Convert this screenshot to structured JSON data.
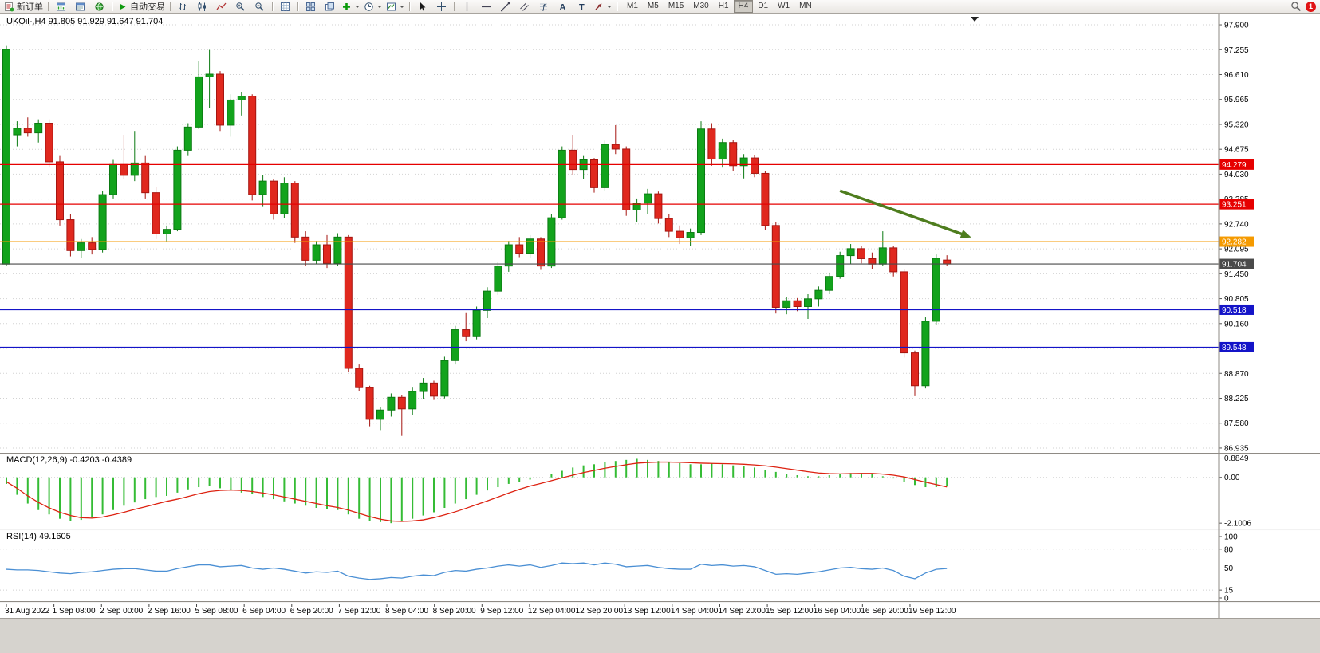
{
  "toolbar": {
    "new_order_label": "新订单",
    "autotrading_label": "自动交易",
    "timeframe_labels": [
      "M1",
      "M5",
      "M15",
      "M30",
      "H1",
      "H4",
      "D1",
      "W1",
      "MN"
    ],
    "active_timeframe": "H4",
    "notification_count": "1"
  },
  "chart_data": {
    "type": "candlestick",
    "symbol_label": "UKOil-,H4 91.805 91.929 91.647 91.704",
    "timeframe": "H4",
    "candle_up_color": "#12a31c",
    "candle_up_border": "#0b7a12",
    "candle_down_color": "#e0281e",
    "candle_down_border": "#a51510",
    "price_axis_ticks": [
      "97.900",
      "97.255",
      "96.610",
      "95.965",
      "95.320",
      "94.675",
      "94.030",
      "93.385",
      "92.740",
      "92.095",
      "91.450",
      "90.805",
      "90.160",
      "89.515",
      "88.870",
      "88.225",
      "87.580",
      "86.935"
    ],
    "time_axis_ticks": [
      "31 Aug 2022",
      "1 Sep 08:00",
      "2 Sep 00:00",
      "2 Sep 16:00",
      "5 Sep 08:00",
      "6 Sep 04:00",
      "6 Sep 20:00",
      "7 Sep 12:00",
      "8 Sep 04:00",
      "8 Sep 20:00",
      "9 Sep 12:00",
      "12 Sep 04:00",
      "12 Sep 20:00",
      "13 Sep 12:00",
      "14 Sep 04:00",
      "14 Sep 20:00",
      "15 Sep 12:00",
      "16 Sep 04:00",
      "16 Sep 20:00",
      "19 Sep 12:00"
    ],
    "levels": [
      {
        "price": 94.279,
        "label": "94.279",
        "color": "#e60000"
      },
      {
        "price": 93.251,
        "label": "93.251",
        "color": "#e60000"
      },
      {
        "price": 92.282,
        "label": "92.282",
        "color": "#f59a00"
      },
      {
        "price": 91.704,
        "label": "91.704",
        "color": "#4a4a4a"
      },
      {
        "price": 90.518,
        "label": "90.518",
        "color": "#1414c8"
      },
      {
        "price": 89.548,
        "label": "89.548",
        "color": "#1414c8"
      }
    ],
    "annotation_arrow": {
      "from_bar": 78,
      "from_price": 93.6,
      "to_bar": 90,
      "to_price": 92.42,
      "color": "#4e7d1e"
    },
    "scroll_marker_bar": 90.6,
    "candles": [
      [
        91.7,
        97.35,
        91.65,
        97.26
      ],
      [
        95.05,
        95.4,
        94.75,
        95.22
      ],
      [
        95.22,
        95.5,
        95.0,
        95.1
      ],
      [
        95.1,
        95.45,
        94.85,
        95.35
      ],
      [
        95.35,
        95.45,
        94.2,
        94.35
      ],
      [
        94.35,
        94.5,
        92.7,
        92.85
      ],
      [
        92.85,
        93.0,
        91.9,
        92.05
      ],
      [
        92.05,
        92.35,
        91.85,
        92.25
      ],
      [
        92.25,
        92.4,
        91.95,
        92.08
      ],
      [
        92.08,
        93.6,
        92.0,
        93.5
      ],
      [
        93.5,
        94.4,
        93.4,
        94.28
      ],
      [
        94.28,
        95.05,
        93.9,
        94.0
      ],
      [
        94.0,
        95.15,
        93.85,
        94.32
      ],
      [
        94.32,
        94.5,
        93.4,
        93.55
      ],
      [
        93.55,
        93.7,
        92.35,
        92.48
      ],
      [
        92.48,
        92.7,
        92.28,
        92.6
      ],
      [
        92.6,
        94.75,
        92.55,
        94.65
      ],
      [
        94.65,
        95.35,
        94.5,
        95.25
      ],
      [
        95.25,
        96.95,
        95.2,
        96.55
      ],
      [
        96.55,
        97.25,
        95.75,
        96.62
      ],
      [
        96.62,
        96.7,
        95.15,
        95.3
      ],
      [
        95.3,
        96.1,
        95.0,
        95.95
      ],
      [
        95.95,
        96.15,
        95.55,
        96.05
      ],
      [
        96.05,
        96.1,
        93.35,
        93.5
      ],
      [
        93.5,
        94.0,
        93.2,
        93.85
      ],
      [
        93.85,
        93.9,
        92.85,
        93.0
      ],
      [
        93.0,
        93.95,
        92.9,
        93.8
      ],
      [
        93.8,
        93.85,
        92.25,
        92.4
      ],
      [
        92.4,
        92.55,
        91.65,
        91.8
      ],
      [
        91.8,
        92.3,
        91.7,
        92.2
      ],
      [
        92.2,
        92.45,
        91.6,
        91.72
      ],
      [
        91.72,
        92.5,
        91.65,
        92.4
      ],
      [
        92.4,
        92.45,
        88.9,
        89.0
      ],
      [
        89.0,
        89.1,
        88.4,
        88.5
      ],
      [
        88.5,
        88.55,
        87.5,
        87.68
      ],
      [
        87.68,
        88.0,
        87.4,
        87.92
      ],
      [
        87.92,
        88.35,
        87.75,
        88.25
      ],
      [
        88.25,
        88.3,
        87.25,
        87.95
      ],
      [
        87.95,
        88.5,
        87.8,
        88.4
      ],
      [
        88.4,
        88.75,
        88.2,
        88.62
      ],
      [
        88.62,
        88.68,
        88.18,
        88.28
      ],
      [
        88.28,
        89.3,
        88.22,
        89.2
      ],
      [
        89.2,
        90.1,
        89.1,
        90.0
      ],
      [
        90.0,
        90.45,
        89.7,
        89.82
      ],
      [
        89.82,
        90.6,
        89.75,
        90.5
      ],
      [
        90.5,
        91.1,
        90.3,
        91.0
      ],
      [
        91.0,
        91.75,
        90.9,
        91.65
      ],
      [
        91.65,
        92.3,
        91.5,
        92.2
      ],
      [
        92.2,
        92.4,
        91.88,
        91.98
      ],
      [
        91.98,
        92.45,
        91.85,
        92.35
      ],
      [
        92.35,
        92.4,
        91.55,
        91.65
      ],
      [
        91.65,
        93.0,
        91.6,
        92.9
      ],
      [
        92.9,
        94.75,
        92.85,
        94.65
      ],
      [
        94.65,
        95.05,
        94.0,
        94.15
      ],
      [
        94.15,
        94.5,
        93.9,
        94.4
      ],
      [
        94.4,
        94.45,
        93.55,
        93.68
      ],
      [
        93.68,
        94.9,
        93.6,
        94.8
      ],
      [
        94.8,
        95.3,
        94.55,
        94.68
      ],
      [
        94.68,
        94.75,
        92.95,
        93.1
      ],
      [
        93.1,
        93.4,
        92.8,
        93.28
      ],
      [
        93.28,
        93.65,
        93.0,
        93.52
      ],
      [
        93.52,
        93.58,
        92.75,
        92.88
      ],
      [
        92.88,
        93.0,
        92.4,
        92.55
      ],
      [
        92.55,
        92.7,
        92.22,
        92.38
      ],
      [
        92.38,
        92.62,
        92.18,
        92.52
      ],
      [
        92.52,
        95.4,
        92.45,
        95.2
      ],
      [
        95.2,
        95.35,
        94.25,
        94.42
      ],
      [
        94.42,
        94.95,
        94.2,
        94.85
      ],
      [
        94.85,
        94.92,
        94.12,
        94.25
      ],
      [
        94.25,
        94.55,
        93.92,
        94.45
      ],
      [
        94.45,
        94.52,
        93.95,
        94.05
      ],
      [
        94.05,
        94.12,
        92.58,
        92.7
      ],
      [
        92.7,
        92.78,
        90.42,
        90.58
      ],
      [
        90.58,
        90.85,
        90.4,
        90.75
      ],
      [
        90.75,
        90.82,
        90.48,
        90.6
      ],
      [
        90.6,
        90.92,
        90.28,
        90.8
      ],
      [
        90.8,
        91.12,
        90.6,
        91.02
      ],
      [
        91.02,
        91.48,
        90.92,
        91.38
      ],
      [
        91.38,
        92.02,
        91.32,
        91.92
      ],
      [
        91.92,
        92.22,
        91.7,
        92.1
      ],
      [
        92.1,
        92.16,
        91.72,
        91.84
      ],
      [
        91.84,
        92.0,
        91.58,
        91.7
      ],
      [
        91.7,
        92.55,
        91.65,
        92.12
      ],
      [
        92.12,
        92.18,
        91.38,
        91.5
      ],
      [
        91.5,
        91.56,
        89.28,
        89.4
      ],
      [
        89.4,
        89.46,
        88.28,
        88.55
      ],
      [
        88.55,
        90.32,
        88.48,
        90.22
      ],
      [
        90.22,
        91.95,
        90.12,
        91.85
      ],
      [
        91.805,
        91.929,
        91.647,
        91.704
      ]
    ],
    "indicators": [
      {
        "name": "MACD",
        "label": "MACD(12,26,9) -0.4203 -0.4389",
        "axis_ticks": [
          "0.8849",
          "0.00",
          "-2.1006"
        ],
        "hist_color": "#35bc35",
        "signal_color": "#dd2211",
        "hist": [
          -0.3,
          -0.8,
          -1.2,
          -1.5,
          -1.7,
          -1.9,
          -2.0,
          -1.95,
          -1.85,
          -1.7,
          -1.5,
          -1.3,
          -1.15,
          -1.0,
          -0.9,
          -0.85,
          -0.7,
          -0.55,
          -0.45,
          -0.4,
          -0.5,
          -0.6,
          -0.7,
          -0.75,
          -0.9,
          -1.0,
          -1.1,
          -1.2,
          -1.3,
          -1.4,
          -1.45,
          -1.5,
          -1.7,
          -1.9,
          -2.0,
          -2.05,
          -2.1,
          -2.0,
          -1.9,
          -1.75,
          -1.6,
          -1.4,
          -1.2,
          -1.0,
          -0.8,
          -0.6,
          -0.45,
          -0.3,
          -0.2,
          -0.1,
          0.0,
          0.15,
          0.3,
          0.45,
          0.55,
          0.6,
          0.7,
          0.75,
          0.8,
          0.85,
          0.8,
          0.75,
          0.7,
          0.65,
          0.6,
          0.6,
          0.65,
          0.6,
          0.55,
          0.5,
          0.45,
          0.35,
          0.25,
          0.15,
          0.1,
          0.05,
          0.05,
          0.1,
          0.15,
          0.2,
          0.2,
          0.15,
          0.05,
          -0.05,
          -0.2,
          -0.35,
          -0.45,
          -0.45,
          -0.4203
        ],
        "signal": [
          -0.2,
          -0.5,
          -0.85,
          -1.15,
          -1.4,
          -1.6,
          -1.75,
          -1.85,
          -1.87,
          -1.82,
          -1.72,
          -1.6,
          -1.47,
          -1.35,
          -1.22,
          -1.1,
          -1.0,
          -0.88,
          -0.75,
          -0.65,
          -0.6,
          -0.58,
          -0.6,
          -0.65,
          -0.72,
          -0.8,
          -0.9,
          -1.0,
          -1.1,
          -1.2,
          -1.3,
          -1.38,
          -1.5,
          -1.65,
          -1.8,
          -1.92,
          -2.0,
          -2.02,
          -2.0,
          -1.95,
          -1.85,
          -1.72,
          -1.58,
          -1.42,
          -1.25,
          -1.08,
          -0.9,
          -0.72,
          -0.55,
          -0.4,
          -0.28,
          -0.15,
          -0.02,
          0.1,
          0.22,
          0.32,
          0.42,
          0.5,
          0.58,
          0.65,
          0.68,
          0.7,
          0.7,
          0.69,
          0.67,
          0.65,
          0.64,
          0.63,
          0.62,
          0.6,
          0.57,
          0.53,
          0.47,
          0.4,
          0.33,
          0.26,
          0.2,
          0.17,
          0.16,
          0.17,
          0.18,
          0.18,
          0.15,
          0.1,
          0.02,
          -0.1,
          -0.22,
          -0.33,
          -0.4389
        ]
      },
      {
        "name": "RSI",
        "label": "RSI(14) 49.1605",
        "axis_ticks": [
          "100",
          "80",
          "50",
          "15",
          "0"
        ],
        "levels": [
          80,
          50,
          15
        ],
        "line_color": "#4a8fd4",
        "values": [
          48,
          47,
          47,
          46,
          44,
          42,
          41,
          43,
          44,
          46,
          48,
          49,
          49,
          47,
          45,
          45,
          49,
          52,
          55,
          55,
          52,
          53,
          54,
          50,
          48,
          50,
          48,
          45,
          42,
          44,
          43,
          45,
          37,
          34,
          32,
          33,
          35,
          34,
          37,
          39,
          38,
          43,
          46,
          45,
          48,
          50,
          53,
          55,
          53,
          55,
          51,
          54,
          58,
          57,
          58,
          55,
          58,
          56,
          52,
          53,
          54,
          51,
          49,
          48,
          48,
          56,
          54,
          55,
          53,
          54,
          52,
          46,
          40,
          41,
          40,
          42,
          44,
          47,
          50,
          51,
          49,
          48,
          50,
          46,
          37,
          33,
          42,
          48,
          49.16
        ]
      }
    ]
  }
}
